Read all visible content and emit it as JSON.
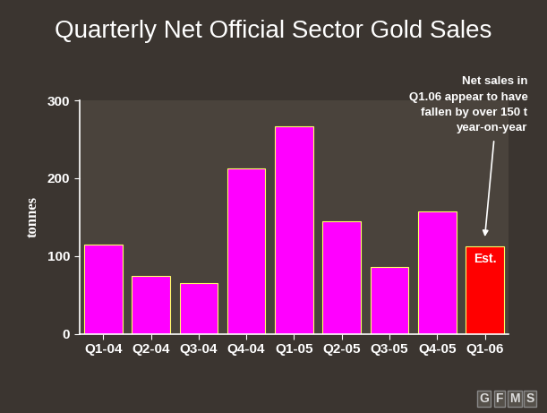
{
  "chart_data": {
    "type": "bar",
    "title": "Quarterly Net Official Sector Gold Sales",
    "y_label": "tonnes",
    "categories": [
      "Q1-04",
      "Q2-04",
      "Q3-04",
      "Q4-04",
      "Q1-05",
      "Q2-05",
      "Q3-05",
      "Q4-05",
      "Q1-06"
    ],
    "values": [
      115,
      75,
      65,
      213,
      267,
      145,
      86,
      158,
      113
    ],
    "colors": [
      "#ff00ff",
      "#ff00ff",
      "#ff00ff",
      "#ff00ff",
      "#ff00ff",
      "#ff00ff",
      "#ff00ff",
      "#ff00ff",
      "#ff0000"
    ],
    "ylim": [
      0,
      300
    ],
    "yticks": [
      0,
      100,
      200,
      300
    ],
    "grid": false,
    "annotations": [
      {
        "text": "Est.",
        "category": "Q1-06"
      },
      {
        "text": "Net sales in\nQ1.06 appear to have\nfallen by over 150 t\nyear-on-year",
        "category": "Q1-06"
      }
    ],
    "source": "GFMS"
  }
}
